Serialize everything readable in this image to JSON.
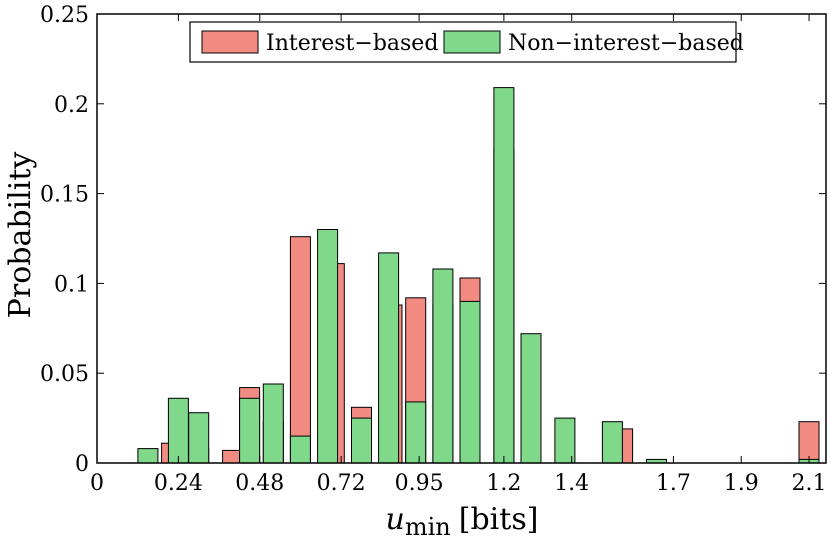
{
  "chart_data": {
    "type": "bar",
    "title": "",
    "xlabel_main": "u",
    "xlabel_sub": "min",
    "xlabel_unit": "[bits]",
    "ylabel": "Probability",
    "xlim": [
      0,
      2.15
    ],
    "ylim": [
      0,
      0.25
    ],
    "x_ticks": [
      0,
      0.24,
      0.48,
      0.72,
      0.95,
      1.2,
      1.4,
      1.7,
      1.9,
      2.1
    ],
    "x_tick_labels": [
      "0",
      "0.24",
      "0.48",
      "0.72",
      "0.95",
      "1.2",
      "1.4",
      "1.7",
      "1.9",
      "2.1"
    ],
    "y_ticks": [
      0,
      0.05,
      0.1,
      0.15,
      0.2,
      0.25
    ],
    "y_tick_labels": [
      "0",
      "0.05",
      "0.1",
      "0.15",
      "0.2",
      "0.25"
    ],
    "legend_position": "top-center",
    "series": [
      {
        "name": "Interest−based",
        "color": "#f28b82",
        "x": [
          0.22,
          0.3,
          0.4,
          0.45,
          0.52,
          0.6,
          0.7,
          0.78,
          0.87,
          0.94,
          1.02,
          1.1,
          1.2,
          1.28,
          1.35,
          1.55,
          1.6,
          2.1
        ],
        "values": [
          0.011,
          0.008,
          0.007,
          0.042,
          0.023,
          0.126,
          0.111,
          0.031,
          0.088,
          0.092,
          0.088,
          0.103,
          0.175,
          0.061,
          0.0,
          0.019,
          0.0,
          0.023
        ]
      },
      {
        "name": "Non−interest−based",
        "color": "#80d88a",
        "x": [
          0.15,
          0.24,
          0.3,
          0.38,
          0.45,
          0.52,
          0.6,
          0.68,
          0.78,
          0.86,
          0.94,
          1.02,
          1.1,
          1.2,
          1.28,
          1.38,
          1.52,
          1.65,
          2.1
        ],
        "values": [
          0.008,
          0.036,
          0.028,
          0.0,
          0.036,
          0.044,
          0.015,
          0.13,
          0.025,
          0.117,
          0.034,
          0.108,
          0.09,
          0.209,
          0.072,
          0.025,
          0.023,
          0.002,
          0.002
        ]
      }
    ]
  }
}
